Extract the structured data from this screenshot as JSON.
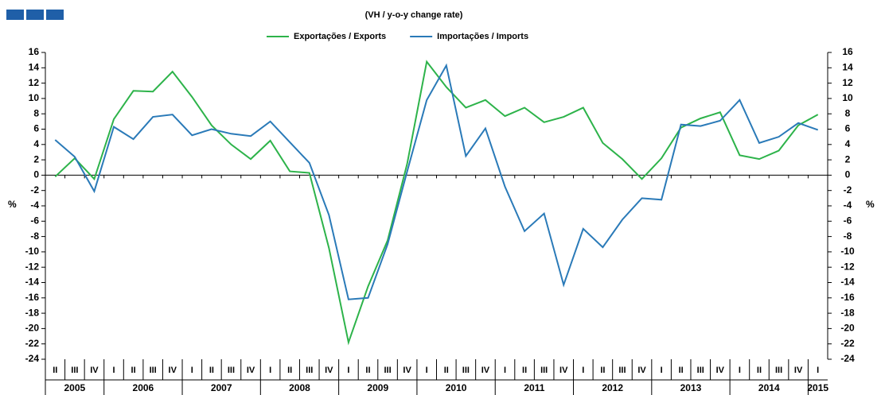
{
  "chart_data": {
    "type": "line",
    "title": "(VH / y-o-y change rate)",
    "y_label": "%",
    "categories": [
      "II",
      "III",
      "IV",
      "I",
      "II",
      "III",
      "IV",
      "I",
      "II",
      "III",
      "IV",
      "I",
      "II",
      "III",
      "IV",
      "I",
      "II",
      "III",
      "IV",
      "I",
      "II",
      "III",
      "IV",
      "I",
      "II",
      "III",
      "IV",
      "I",
      "II",
      "III",
      "IV",
      "I",
      "II",
      "III",
      "IV",
      "I",
      "II",
      "III",
      "IV",
      "I"
    ],
    "years": [
      "2005",
      "2006",
      "2007",
      "2008",
      "2009",
      "2010",
      "2011",
      "2012",
      "2013",
      "2014",
      "2015"
    ],
    "series": [
      {
        "name": "Exportações / Exports",
        "color": "#2db34a",
        "values": [
          -0.2,
          2.2,
          -0.5,
          7.3,
          11.0,
          10.9,
          13.5,
          10.2,
          6.5,
          4.0,
          2.1,
          4.5,
          0.5,
          0.3,
          -9.5,
          -21.8,
          -14.5,
          -8.5,
          1.5,
          14.8,
          11.5,
          8.8,
          9.8,
          7.7,
          8.8,
          6.9,
          7.6,
          8.8,
          4.2,
          2.1,
          -0.5,
          2.2,
          6.2,
          7.4,
          8.2,
          2.6,
          2.1,
          3.2,
          6.5,
          7.9
        ]
      },
      {
        "name": "Importações / Imports",
        "color": "#2a7ab8",
        "values": [
          4.6,
          2.4,
          -2.1,
          6.3,
          4.7,
          7.6,
          7.9,
          5.2,
          6.0,
          5.4,
          5.1,
          7.0,
          4.3,
          1.6,
          -5.2,
          -16.2,
          -16.0,
          -9.0,
          0.5,
          9.8,
          14.3,
          2.5,
          6.1,
          -1.5,
          -7.3,
          -5.0,
          -14.3,
          -7.0,
          -9.4,
          -5.8,
          -3.0,
          -3.2,
          6.6,
          6.4,
          7.1,
          9.8,
          4.2,
          5.0,
          6.8,
          5.9
        ]
      }
    ],
    "ylim": [
      -24,
      16
    ],
    "yticks": [
      -24,
      -22,
      -20,
      -18,
      -16,
      -14,
      -12,
      -10,
      -8,
      -6,
      -4,
      -2,
      0,
      2,
      4,
      6,
      8,
      10,
      12,
      14,
      16
    ]
  }
}
